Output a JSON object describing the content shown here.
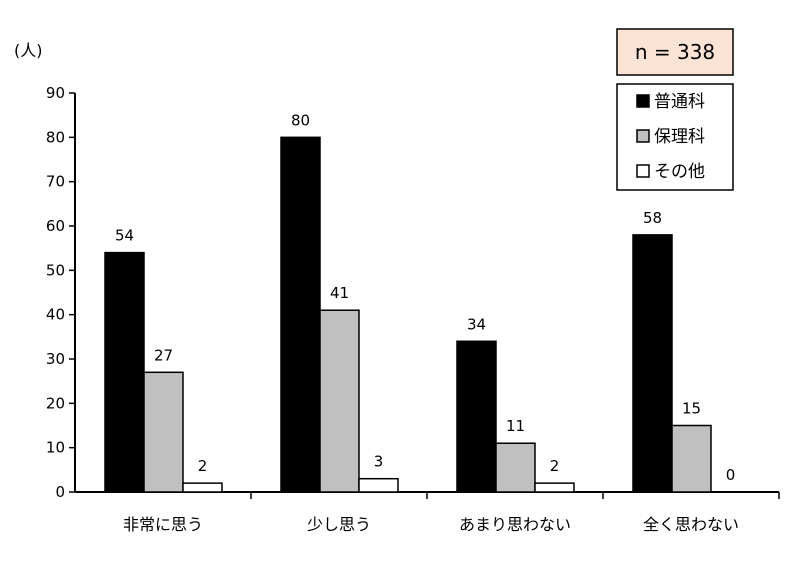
{
  "chart_data": {
    "type": "bar",
    "title": "",
    "xlabel": "",
    "ylabel": "(人)",
    "ylim": [
      0,
      90
    ],
    "yticks": [
      0,
      10,
      20,
      30,
      40,
      50,
      60,
      70,
      80,
      90
    ],
    "grid": false,
    "legend_position": "top-right",
    "categories": [
      "非常に思う",
      "少し思う",
      "あまり思わない",
      "全く思わない"
    ],
    "series": [
      {
        "name": "普通科",
        "color": "#000000",
        "values": [
          54,
          80,
          34,
          58
        ]
      },
      {
        "name": "保理科",
        "color": "#c0c0c0",
        "values": [
          27,
          41,
          11,
          15
        ]
      },
      {
        "name": "その他",
        "color": "#ffffff",
        "values": [
          2,
          3,
          2,
          0
        ]
      }
    ],
    "annotation": "n = 338",
    "annotation_color": "#fbe4d5"
  }
}
